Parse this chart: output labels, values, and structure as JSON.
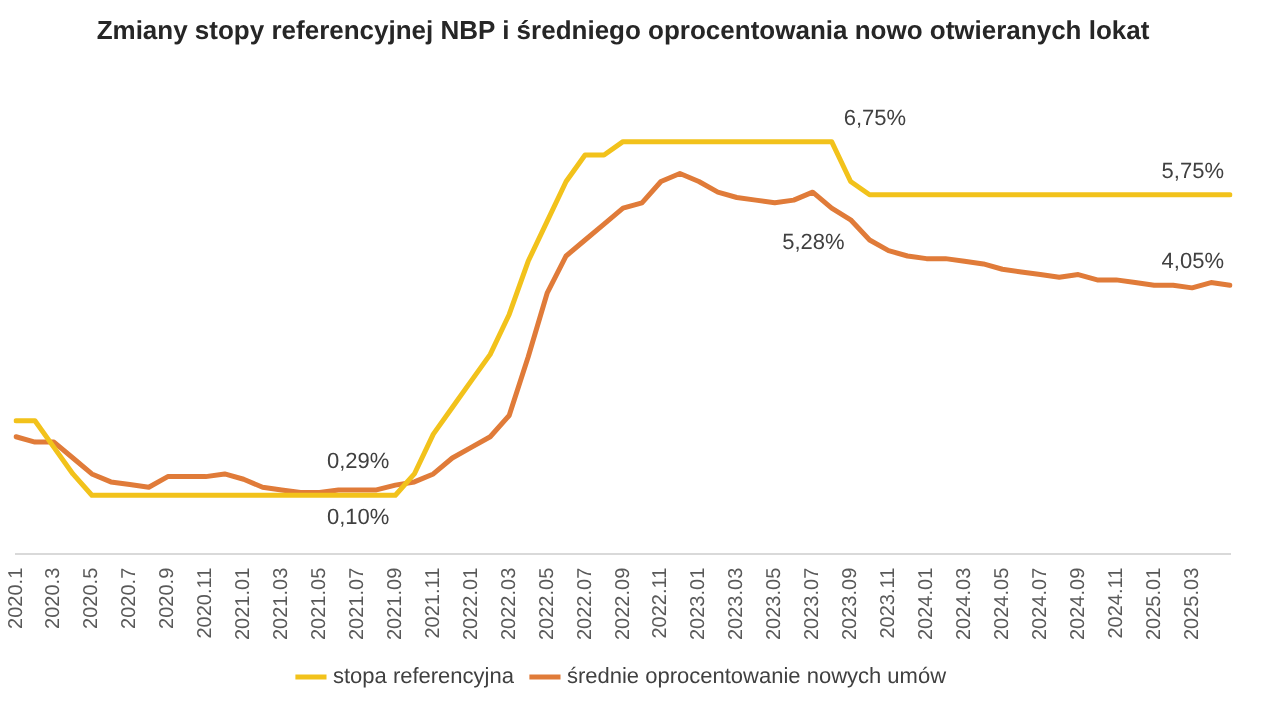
{
  "chart_data": {
    "type": "line",
    "title": "Zmiany stopy referencyjnej NBP i średniego oprocentowania nowo otwieranych lokat",
    "categories": [
      "2020.1",
      null,
      "2020.3",
      null,
      "2020.5",
      null,
      "2020.7",
      null,
      "2020.9",
      null,
      "2020.11",
      null,
      "2021.01",
      null,
      "2021.03",
      null,
      "2021.05",
      null,
      "2021.07",
      null,
      "2021.09",
      null,
      "2021.11",
      null,
      "2022.01",
      null,
      "2022.03",
      null,
      "2022.05",
      null,
      "2022.07",
      null,
      "2022.09",
      null,
      "2022.11",
      null,
      "2023.01",
      null,
      "2023.03",
      null,
      "2023.05",
      null,
      "2023.07",
      null,
      "2023.09",
      null,
      "2023.11",
      null,
      "2024.01",
      null,
      "2024.03",
      null,
      "2024.05",
      null,
      "2024.07",
      null,
      "2024.09",
      null,
      "2024.11",
      null,
      "2025.01",
      null,
      "2025.03",
      null,
      null
    ],
    "series": [
      {
        "name": "stopa referencyjna",
        "color": "#f2c21b",
        "values": [
          1.5,
          1.5,
          1.0,
          0.5,
          0.1,
          0.1,
          0.1,
          0.1,
          0.1,
          0.1,
          0.1,
          0.1,
          0.1,
          0.1,
          0.1,
          0.1,
          0.1,
          0.1,
          0.1,
          0.1,
          0.1,
          0.5,
          1.25,
          1.75,
          2.25,
          2.75,
          3.5,
          4.5,
          5.25,
          6.0,
          6.5,
          6.5,
          6.75,
          6.75,
          6.75,
          6.75,
          6.75,
          6.75,
          6.75,
          6.75,
          6.75,
          6.75,
          6.75,
          6.75,
          6.0,
          5.75,
          5.75,
          5.75,
          5.75,
          5.75,
          5.75,
          5.75,
          5.75,
          5.75,
          5.75,
          5.75,
          5.75,
          5.75,
          5.75,
          5.75,
          5.75,
          5.75,
          5.75,
          5.75,
          5.75
        ],
        "value_labels": [
          null,
          null,
          null,
          null,
          null,
          null,
          null,
          null,
          null,
          null,
          null,
          null,
          null,
          null,
          null,
          null,
          null,
          null,
          null,
          null,
          "0,10%",
          null,
          null,
          null,
          null,
          null,
          null,
          null,
          null,
          null,
          null,
          null,
          null,
          null,
          null,
          null,
          null,
          null,
          null,
          null,
          null,
          null,
          null,
          "6,75%",
          null,
          null,
          null,
          null,
          null,
          null,
          null,
          null,
          null,
          null,
          null,
          null,
          null,
          null,
          null,
          null,
          null,
          null,
          null,
          null,
          "5,75%"
        ]
      },
      {
        "name": "średnie oprocentowanie nowych umów",
        "color": "#e07b39",
        "values": [
          1.2,
          1.1,
          1.1,
          0.8,
          0.5,
          0.35,
          0.3,
          0.25,
          0.45,
          0.45,
          0.45,
          0.5,
          0.4,
          0.25,
          0.2,
          0.15,
          0.15,
          0.2,
          0.2,
          0.2,
          0.29,
          0.35,
          0.5,
          0.8,
          1.0,
          1.2,
          1.6,
          2.7,
          3.9,
          4.6,
          4.9,
          5.2,
          5.5,
          5.6,
          6.0,
          6.15,
          6.0,
          5.8,
          5.7,
          5.65,
          5.6,
          5.65,
          5.8,
          5.5,
          5.28,
          4.9,
          4.7,
          4.6,
          4.55,
          4.55,
          4.5,
          4.45,
          4.35,
          4.3,
          4.25,
          4.2,
          4.25,
          4.15,
          4.15,
          4.1,
          4.05,
          4.05,
          4.0,
          4.1,
          4.05
        ],
        "value_labels": [
          null,
          null,
          null,
          null,
          null,
          null,
          null,
          null,
          null,
          null,
          null,
          null,
          null,
          null,
          null,
          null,
          null,
          null,
          null,
          null,
          "0,29%",
          null,
          null,
          null,
          null,
          null,
          null,
          null,
          null,
          null,
          null,
          null,
          null,
          null,
          null,
          null,
          null,
          null,
          null,
          null,
          null,
          null,
          null,
          null,
          "5,28%",
          null,
          null,
          null,
          null,
          null,
          null,
          null,
          null,
          null,
          null,
          null,
          null,
          null,
          null,
          null,
          null,
          null,
          null,
          null,
          "4,05%"
        ]
      }
    ],
    "tick_labels": "x",
    "grid": false,
    "legend": "bottom",
    "marker": "none",
    "line_style": "solid"
  }
}
